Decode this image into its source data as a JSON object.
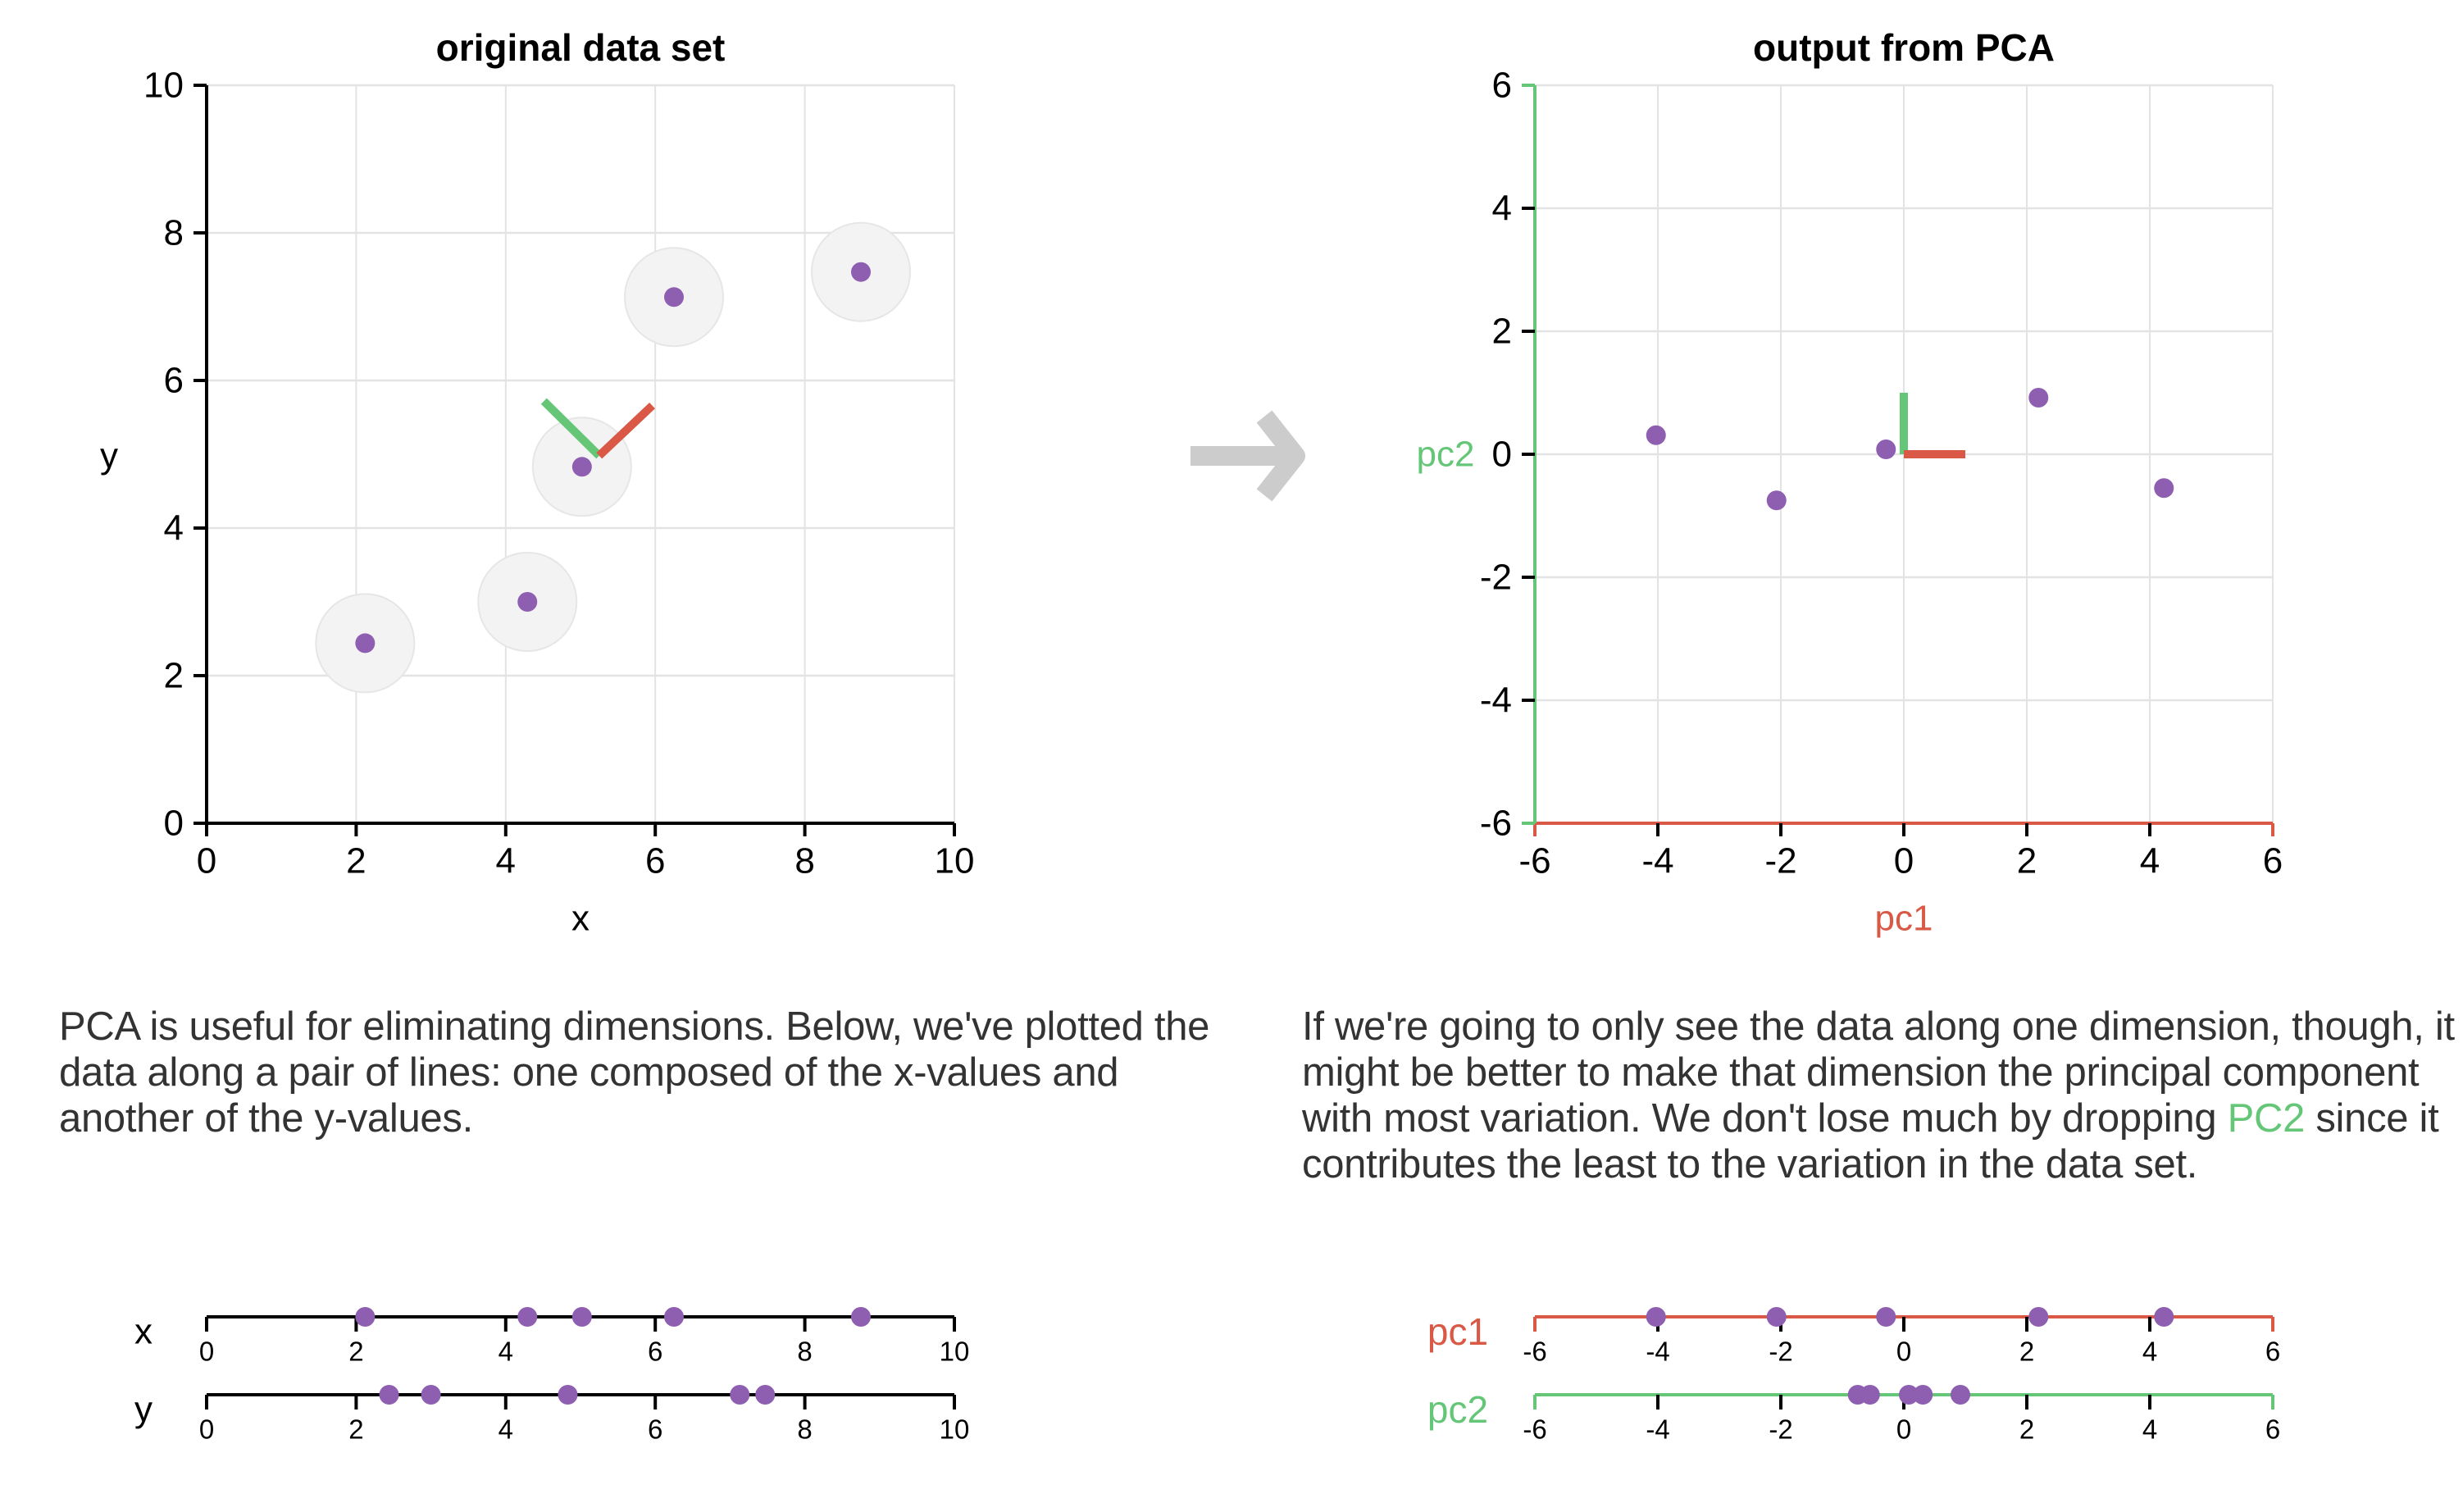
{
  "colors": {
    "point": "#8e5eb1",
    "halo_fill": "#f3f3f3",
    "halo_stroke": "#e6e6e6",
    "pc1": "#d95946",
    "pc2": "#65c678",
    "grid": "#e3e3e3",
    "axis": "#000000",
    "arrow": "#cccccc",
    "text": "#333333"
  },
  "arrow": {
    "icon": "right-arrow-icon"
  },
  "paragraphs": {
    "left": "PCA is useful for eliminating dimensions. Below, we've plotted the data along a pair of lines: one composed of the x-values and another of the y-values.",
    "right_before": "If we're going to only see the data along one dimension, though, it might be better to make that dimension the principal component with most variation. We don't lose much by dropping ",
    "right_highlight": "PC2",
    "right_after": " since it contributes the least to the variation in the data set."
  },
  "chart_data": [
    {
      "type": "scatter",
      "title": "original data set",
      "xlabel": "x",
      "ylabel": "y",
      "xlim": [
        0,
        10
      ],
      "ylim": [
        0,
        10
      ],
      "xticks": [
        0,
        2,
        4,
        6,
        8,
        10
      ],
      "yticks": [
        0,
        2,
        4,
        6,
        8,
        10
      ],
      "grid": true,
      "points": [
        {
          "x": 2.12,
          "y": 2.44
        },
        {
          "x": 4.29,
          "y": 3.0
        },
        {
          "x": 5.02,
          "y": 4.83
        },
        {
          "x": 6.25,
          "y": 7.13
        },
        {
          "x": 8.75,
          "y": 7.47
        }
      ],
      "pc_vectors": {
        "origin": {
          "x": 5.25,
          "y": 4.98
        },
        "pc1_end": {
          "x": 5.96,
          "y": 5.66
        },
        "pc2_end": {
          "x": 4.51,
          "y": 5.72
        }
      }
    },
    {
      "type": "scatter",
      "title": "output from PCA",
      "xlabel": "pc1",
      "ylabel": "pc2",
      "xlim": [
        -6,
        6
      ],
      "ylim": [
        -6,
        6
      ],
      "xticks": [
        -6,
        -4,
        -2,
        0,
        2,
        4,
        6
      ],
      "yticks": [
        -6,
        -4,
        -2,
        0,
        2,
        4,
        6
      ],
      "grid": true,
      "points": [
        {
          "x": -4.03,
          "y": 0.31
        },
        {
          "x": -2.07,
          "y": -0.75
        },
        {
          "x": -0.29,
          "y": 0.08
        },
        {
          "x": 2.19,
          "y": 0.92
        },
        {
          "x": 4.23,
          "y": -0.55
        }
      ],
      "pc_vectors": {
        "origin": {
          "x": 0,
          "y": 0
        },
        "pc1_end": {
          "x": 1.0,
          "y": 0
        },
        "pc2_end": {
          "x": 0,
          "y": 1.0
        }
      }
    },
    {
      "type": "strip",
      "label": "x",
      "range": [
        0,
        10
      ],
      "ticks": [
        0,
        2,
        4,
        6,
        8,
        10
      ],
      "values": [
        2.12,
        4.29,
        5.02,
        6.25,
        8.75
      ]
    },
    {
      "type": "strip",
      "label": "y",
      "range": [
        0,
        10
      ],
      "ticks": [
        0,
        2,
        4,
        6,
        8,
        10
      ],
      "values": [
        2.44,
        3.0,
        4.83,
        7.13,
        7.47
      ]
    },
    {
      "type": "strip",
      "label": "pc1",
      "range": [
        -6,
        6
      ],
      "ticks": [
        -6,
        -4,
        -2,
        0,
        2,
        4,
        6
      ],
      "values": [
        -4.03,
        -2.07,
        -0.29,
        2.19,
        4.23
      ]
    },
    {
      "type": "strip",
      "label": "pc2",
      "range": [
        -6,
        6
      ],
      "ticks": [
        -6,
        -4,
        -2,
        0,
        2,
        4,
        6
      ],
      "values": [
        0.31,
        -0.75,
        0.08,
        0.92,
        -0.55
      ]
    }
  ]
}
